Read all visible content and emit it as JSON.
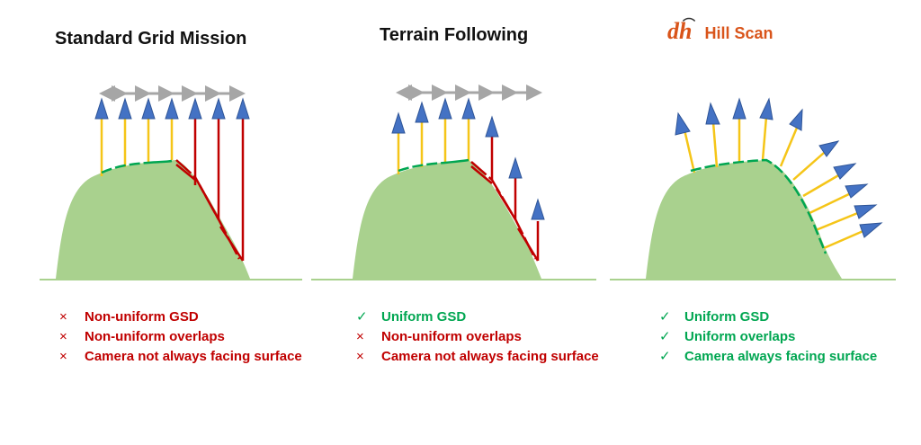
{
  "colors": {
    "hill": "#a9d18e",
    "ground": "#a9d18e",
    "arrow_blue": "#4472c4",
    "beam_yellow": "#f5c518",
    "beam_red": "#c00000",
    "overlap_green": "#00a651",
    "spacing_gray": "#a6a6a6",
    "bad_text": "#c00000",
    "good_text": "#00a651",
    "logo_orange": "#d9541a"
  },
  "panels": [
    {
      "title": "Standard Grid Mission",
      "items": [
        {
          "mark": "×",
          "text": "Non-uniform GSD",
          "status": "bad"
        },
        {
          "mark": "×",
          "text": "Non-uniform overlaps",
          "status": "bad"
        },
        {
          "mark": "×",
          "text": "Camera not always facing surface",
          "status": "bad"
        }
      ]
    },
    {
      "title": "Terrain Following",
      "items": [
        {
          "mark": "✓",
          "text": "Uniform GSD",
          "status": "good"
        },
        {
          "mark": "×",
          "text": "Non-uniform overlaps",
          "status": "bad"
        },
        {
          "mark": "×",
          "text": "Camera not always facing surface",
          "status": "bad"
        }
      ]
    },
    {
      "title": "Hill Scan",
      "logo_text": "dh",
      "items": [
        {
          "mark": "✓",
          "text": "Uniform GSD",
          "status": "good"
        },
        {
          "mark": "✓",
          "text": "Uniform overlaps",
          "status": "good"
        },
        {
          "mark": "✓",
          "text": "Camera always facing surface",
          "status": "good"
        }
      ]
    }
  ]
}
